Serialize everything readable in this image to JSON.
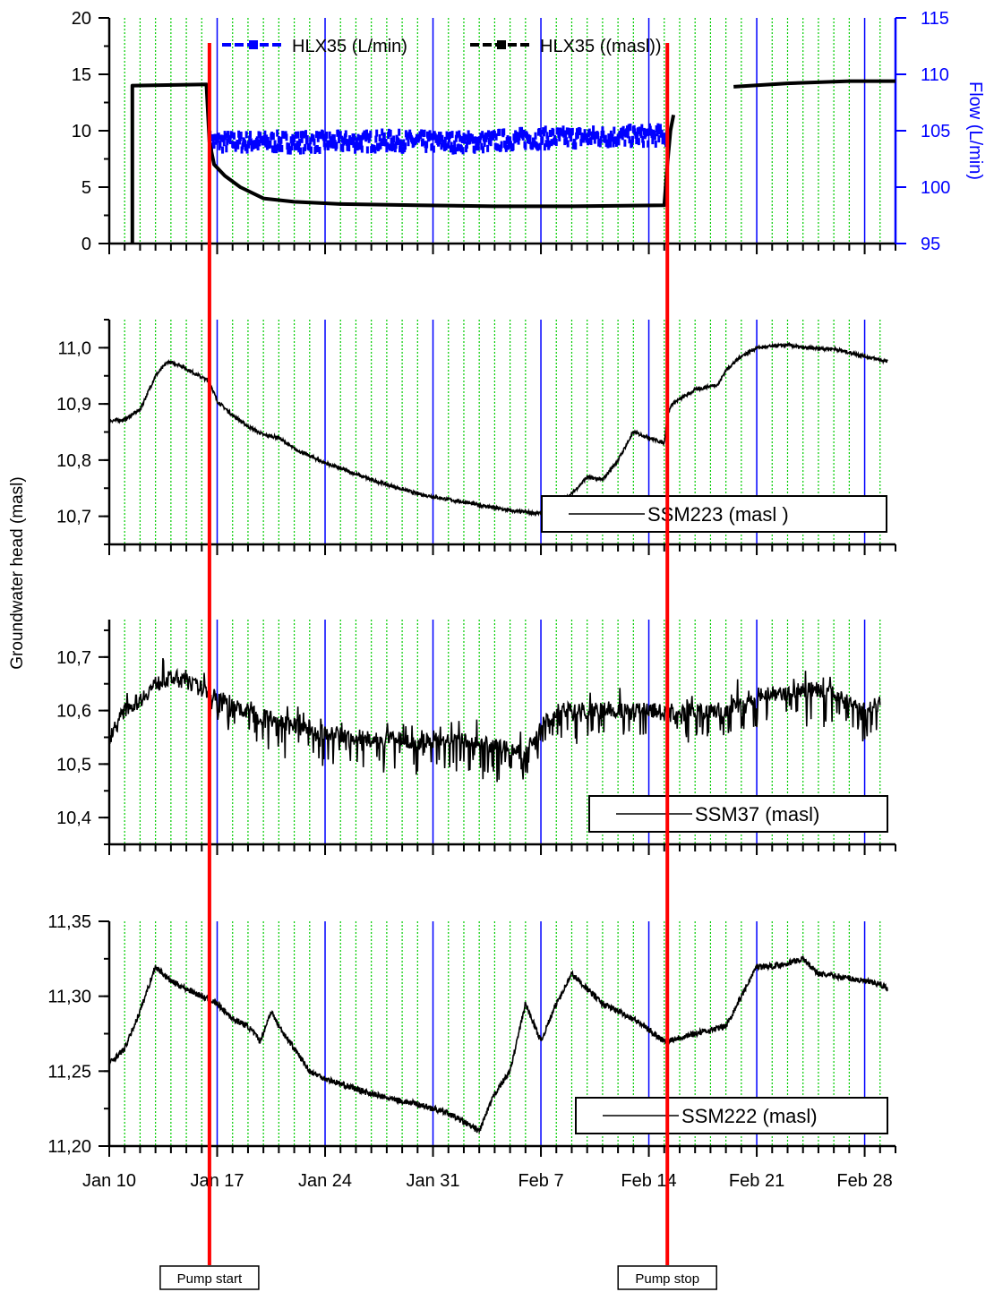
{
  "ylabel_shared": "Groundwater head (masl)",
  "x_ticks": [
    "Jan 10",
    "Jan 17",
    "Jan 24",
    "Jan 31",
    "Feb 7",
    "Feb 14",
    "Feb 21",
    "Feb 28"
  ],
  "x_range_days": [
    0,
    51
  ],
  "markers": [
    {
      "label": "Pump start",
      "day": 6.5
    },
    {
      "label": "Pump stop",
      "day": 36.2
    }
  ],
  "colors": {
    "axes": "#000000",
    "flow": "#0000ff",
    "marker": "#ff0000",
    "grid_minor": "#00cc00",
    "grid_major": "#0000ff"
  },
  "chart_data": [
    {
      "type": "line",
      "ylim": [
        0,
        20
      ],
      "yticks": [
        "0",
        "5",
        "10",
        "15",
        "20"
      ],
      "y2label": "Flow (L/min)",
      "y2lim": [
        95,
        115
      ],
      "y2ticks": [
        "95",
        "100",
        "105",
        "110",
        "115"
      ],
      "legend_position": "top",
      "series": [
        {
          "name": "HLX35 (L/min)",
          "axis": "right",
          "style": "band",
          "x": [
            6.5,
            9,
            12,
            15,
            18,
            21,
            24,
            27,
            30,
            33,
            36.2
          ],
          "y": [
            104,
            104,
            104,
            104,
            104.1,
            104,
            104,
            104.3,
            104.4,
            104.5,
            104.6
          ],
          "spread": 0.8
        },
        {
          "name": "HLX35 ((masl))",
          "axis": "left",
          "style": "line",
          "x": [
            1.5,
            1.5,
            1.6,
            6.3,
            6.5,
            6.8,
            7.5,
            8.5,
            10,
            12,
            15,
            20,
            25,
            30,
            36,
            36.2,
            36.4,
            36.6,
            null,
            40.5,
            44,
            48,
            51
          ],
          "y": [
            0,
            14,
            14,
            14.1,
            9,
            7,
            6,
            5,
            4,
            3.7,
            3.5,
            3.4,
            3.3,
            3.3,
            3.4,
            7,
            10,
            11.4,
            null,
            13.9,
            14.2,
            14.4,
            14.4
          ]
        }
      ]
    },
    {
      "type": "line",
      "ylim": [
        10.65,
        11.05
      ],
      "yticks": [
        "10,7",
        "10,8",
        "10,9",
        "11,0"
      ],
      "legend_position": "bottom-right",
      "series": [
        {
          "name": "SSM223 (masl    )",
          "noise": 0.003,
          "x": [
            0,
            1,
            2,
            3,
            3.8,
            4.5,
            5.5,
            6.5,
            7,
            8,
            9,
            10,
            11,
            12,
            14,
            17,
            20,
            23,
            26,
            28,
            28.5,
            30,
            31,
            32,
            33,
            34,
            36,
            36.2,
            36.5,
            38,
            39.5,
            40,
            41,
            42,
            44,
            45,
            47,
            49,
            50.5
          ],
          "y": [
            10.87,
            10.872,
            10.89,
            10.95,
            10.975,
            10.97,
            10.955,
            10.94,
            10.905,
            10.88,
            10.86,
            10.845,
            10.84,
            10.82,
            10.795,
            10.765,
            10.74,
            10.725,
            10.71,
            10.705,
            10.71,
            10.74,
            10.77,
            10.765,
            10.8,
            10.85,
            10.83,
            10.88,
            10.9,
            10.925,
            10.935,
            10.96,
            10.985,
            11.0,
            11.005,
            11.0,
            10.998,
            10.985,
            10.975
          ]
        }
      ]
    },
    {
      "type": "line",
      "ylim": [
        10.35,
        10.77
      ],
      "yticks": [
        "10,4",
        "10,5",
        "10,6",
        "10,7"
      ],
      "legend_position": "bottom-right",
      "series": [
        {
          "name": "SSM37 (masl)",
          "noise": 0.015,
          "spikes": true,
          "x": [
            0,
            1,
            2,
            3,
            4,
            5,
            6,
            8,
            10,
            12,
            14,
            16,
            18,
            20,
            22,
            24,
            26,
            27,
            28,
            29,
            30,
            32,
            34,
            36,
            38,
            40,
            42,
            44,
            46,
            48,
            49,
            50
          ],
          "y": [
            10.55,
            10.6,
            10.62,
            10.65,
            10.66,
            10.655,
            10.64,
            10.61,
            10.59,
            10.57,
            10.56,
            10.55,
            10.545,
            10.545,
            10.545,
            10.54,
            10.53,
            10.52,
            10.57,
            10.6,
            10.6,
            10.6,
            10.6,
            10.6,
            10.6,
            10.6,
            10.63,
            10.635,
            10.64,
            10.62,
            10.6,
            10.615
          ]
        }
      ]
    },
    {
      "type": "line",
      "ylim": [
        11.2,
        11.35
      ],
      "yticks": [
        "11,20",
        "11,25",
        "11,30",
        "11,35"
      ],
      "legend_position": "bottom-right",
      "series": [
        {
          "name": "SSM222 (masl)",
          "noise": 0.002,
          "x": [
            0,
            1,
            2,
            3,
            4,
            5,
            6,
            7,
            8,
            9,
            9.8,
            10.5,
            11,
            12,
            13,
            14,
            16,
            18,
            20,
            22,
            24,
            25,
            26,
            27,
            28,
            29,
            30,
            31,
            32,
            34,
            36,
            38,
            40,
            41,
            42,
            43,
            44,
            45,
            46,
            48,
            50,
            50.5
          ],
          "y": [
            11.255,
            11.265,
            11.29,
            11.32,
            11.31,
            11.305,
            11.3,
            11.295,
            11.285,
            11.28,
            11.27,
            11.29,
            11.28,
            11.265,
            11.25,
            11.245,
            11.238,
            11.232,
            11.228,
            11.222,
            11.21,
            11.235,
            11.25,
            11.295,
            11.27,
            11.295,
            11.315,
            11.305,
            11.295,
            11.285,
            11.27,
            11.275,
            11.28,
            11.3,
            11.32,
            11.32,
            11.322,
            11.325,
            11.315,
            11.312,
            11.308,
            11.305
          ]
        }
      ]
    }
  ]
}
